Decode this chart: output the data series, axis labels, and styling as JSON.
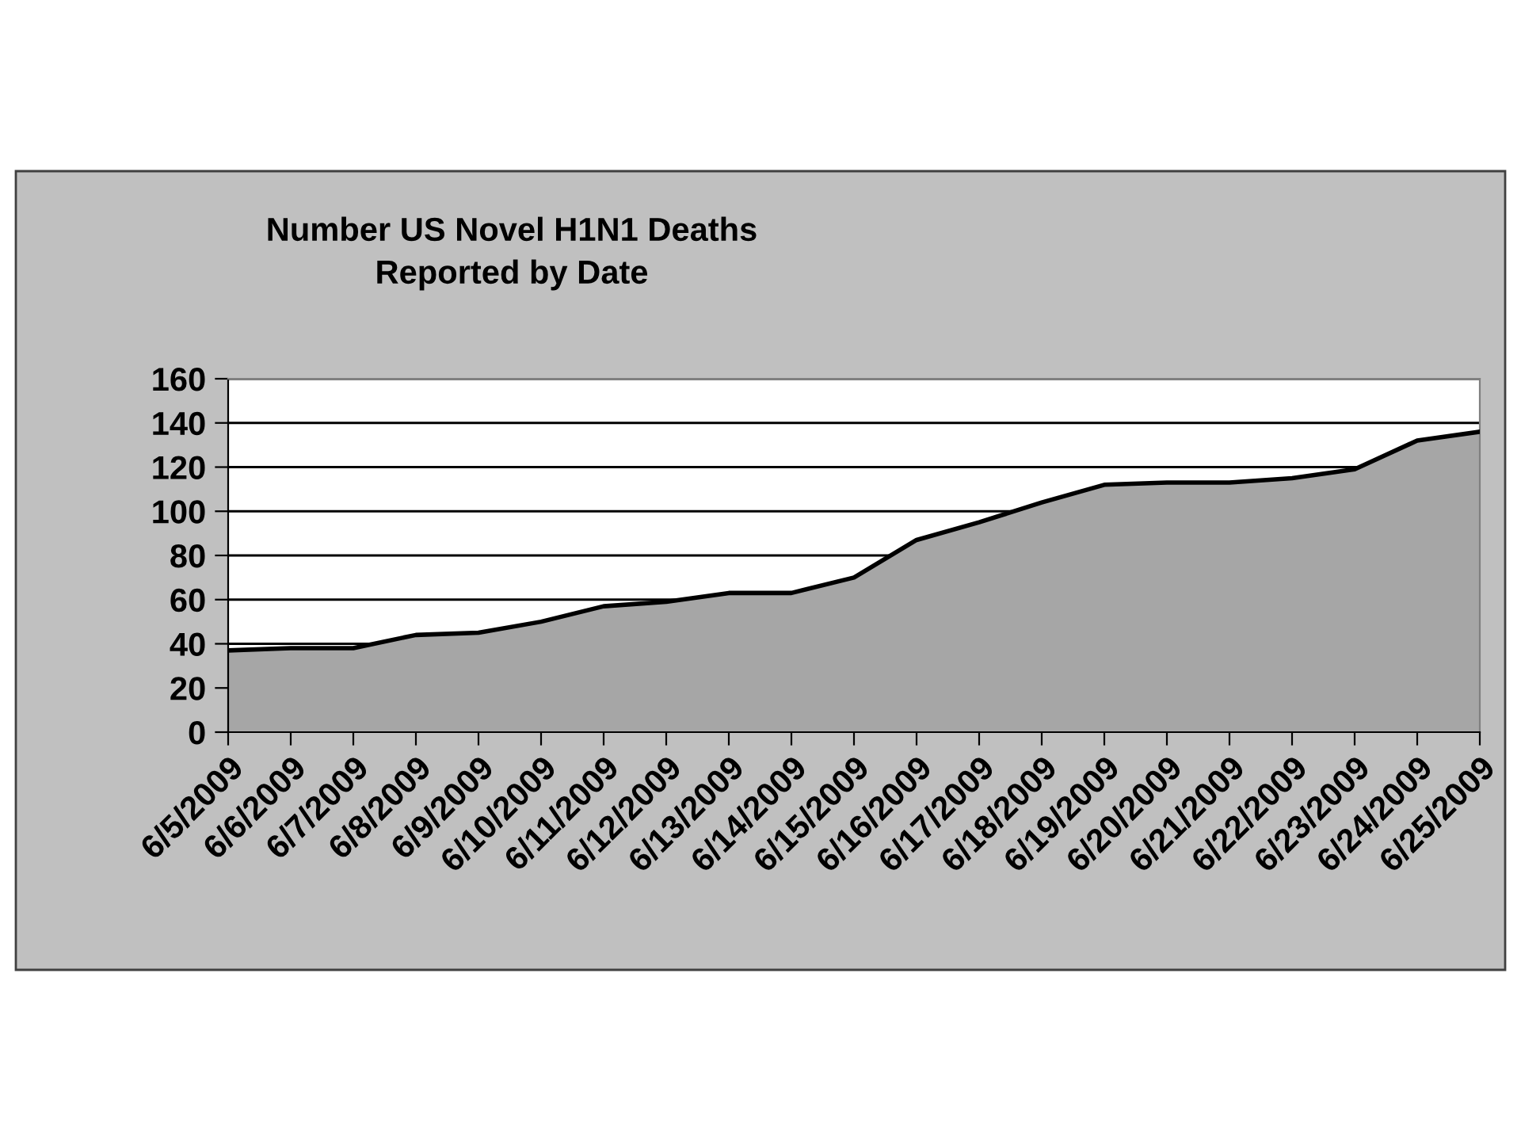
{
  "chart_data": {
    "type": "area",
    "title": "Number US Novel H1N1 Deaths\nReported by Date",
    "categories": [
      "6/5/2009",
      "6/6/2009",
      "6/7/2009",
      "6/8/2009",
      "6/9/2009",
      "6/10/2009",
      "6/11/2009",
      "6/12/2009",
      "6/13/2009",
      "6/14/2009",
      "6/15/2009",
      "6/16/2009",
      "6/17/2009",
      "6/18/2009",
      "6/19/2009",
      "6/20/2009",
      "6/21/2009",
      "6/22/2009",
      "6/23/2009",
      "6/24/2009",
      "6/25/2009"
    ],
    "values": [
      37,
      38,
      38,
      44,
      45,
      50,
      57,
      59,
      63,
      63,
      70,
      87,
      95,
      104,
      112,
      113,
      113,
      115,
      119,
      132,
      136
    ],
    "color": "#a6a6a6",
    "ylim": [
      0,
      160
    ],
    "yticks": [
      0,
      20,
      40,
      60,
      80,
      100,
      120,
      140,
      160
    ],
    "grid": "y",
    "legend": false
  }
}
